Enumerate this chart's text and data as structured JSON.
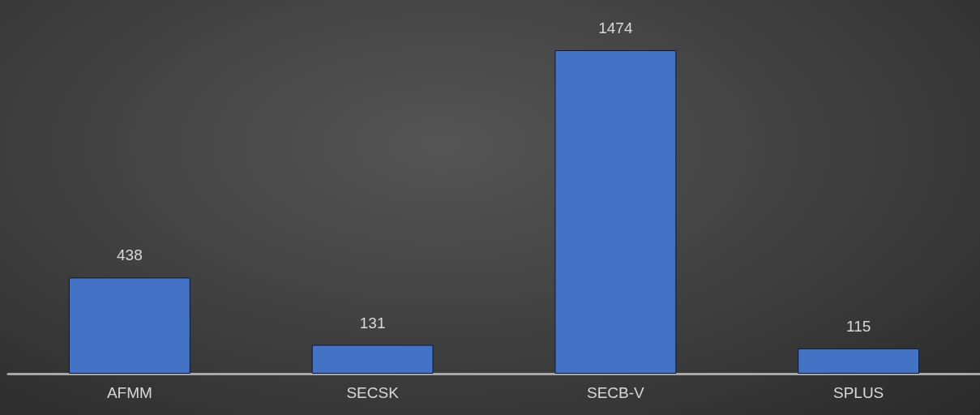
{
  "chart_data": {
    "type": "bar",
    "categories": [
      "AFMM",
      "SECSK",
      "SECB-V",
      "SPLUS"
    ],
    "values": [
      438,
      131,
      1474,
      115
    ],
    "color": "#4472c4",
    "data_labels": true
  }
}
